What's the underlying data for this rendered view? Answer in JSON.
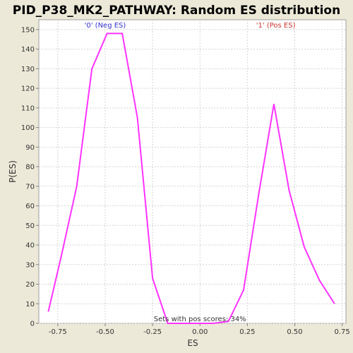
{
  "chart_data": {
    "type": "line",
    "title": "PID_P38_MK2_PATHWAY: Random ES distribution",
    "xlabel": "ES",
    "ylabel": "P(ES)",
    "xlim": [
      -0.85,
      0.77
    ],
    "ylim": [
      0,
      155
    ],
    "x_ticks": [
      -0.75,
      -0.5,
      -0.25,
      0.0,
      0.25,
      0.5,
      0.75
    ],
    "x_tick_labels": [
      "-0.75",
      "-0.50",
      "-0.25",
      "0.00",
      "0.25",
      "0.50",
      "0.75"
    ],
    "y_ticks": [
      0,
      10,
      20,
      30,
      40,
      50,
      60,
      70,
      80,
      90,
      100,
      110,
      120,
      130,
      140,
      150
    ],
    "y_tick_labels": [
      "0",
      "10",
      "20",
      "30",
      "40",
      "50",
      "60",
      "70",
      "80",
      "90",
      "100",
      "110",
      "120",
      "130",
      "140",
      "150"
    ],
    "grid": true,
    "line_color": "#ff33ff",
    "x": [
      -0.8,
      -0.73,
      -0.65,
      -0.57,
      -0.49,
      -0.41,
      -0.33,
      -0.25,
      -0.17,
      -0.09,
      -0.01,
      0.07,
      0.15,
      0.23,
      0.31,
      0.39,
      0.47,
      0.55,
      0.63,
      0.71
    ],
    "series": [
      {
        "values": [
          6,
          35,
          70,
          130,
          148,
          148,
          105,
          23,
          0,
          0,
          0,
          0,
          1,
          17,
          66,
          112,
          68,
          39,
          22,
          10
        ]
      }
    ],
    "annotations": [
      {
        "text": "'0' (Neg ES)",
        "x": -0.5,
        "y": 151,
        "color": "#3333cc"
      },
      {
        "text": "'1' (Pos ES)",
        "x": 0.4,
        "y": 151,
        "color": "#cc3333"
      },
      {
        "text": "Sets with pos scores: 34%",
        "x": 0.0,
        "y": 1,
        "color": "#333333"
      }
    ]
  },
  "colors": {
    "background": "#ece9d8",
    "plot_background": "#ffffff",
    "grid": "#d4d4d4",
    "line": "#ff33ff"
  }
}
